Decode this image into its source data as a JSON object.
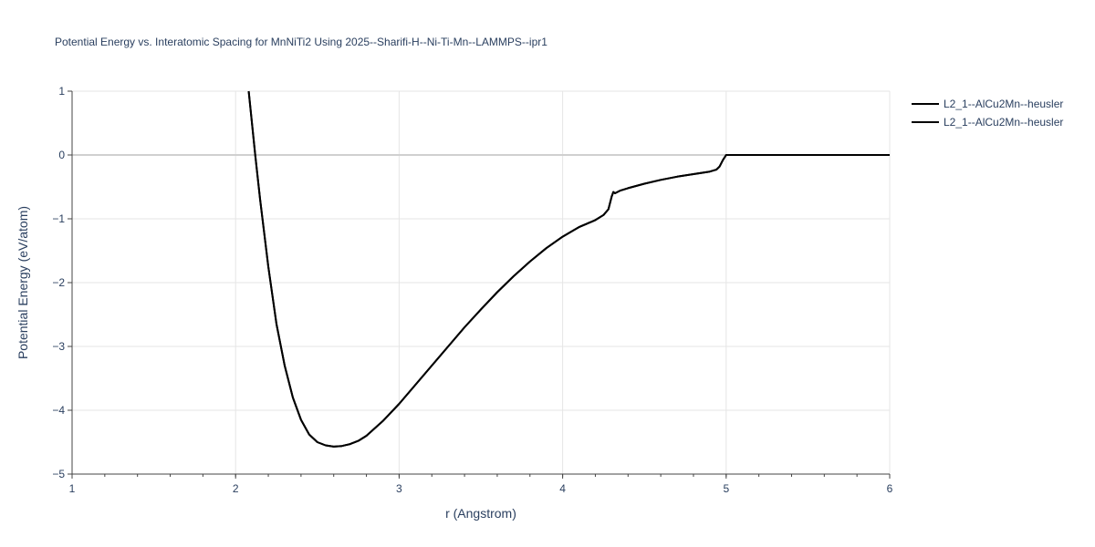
{
  "chart_data": {
    "type": "line",
    "title": "Potential Energy vs. Interatomic Spacing for MnNiTi2 Using 2025--Sharifi-H--Ni-Ti-Mn--LAMMPS--ipr1",
    "xlabel": "r (Angstrom)",
    "ylabel": "Potential Energy (eV/atom)",
    "xlim": [
      1,
      6
    ],
    "ylim": [
      -5,
      1
    ],
    "xticks": [
      "1",
      "2",
      "3",
      "4",
      "5",
      "6"
    ],
    "yticks": [
      "1",
      "0",
      "−1",
      "−2",
      "−3",
      "−4",
      "−5"
    ],
    "grid": true,
    "legend_position": "top-right",
    "series": [
      {
        "name": "L2_1--AlCu2Mn--heusler",
        "color": "#000000",
        "x": [
          2.08,
          2.1,
          2.12,
          2.15,
          2.2,
          2.25,
          2.3,
          2.35,
          2.4,
          2.45,
          2.5,
          2.55,
          2.6,
          2.65,
          2.7,
          2.75,
          2.8,
          2.9,
          3.0,
          3.1,
          3.2,
          3.3,
          3.4,
          3.5,
          3.6,
          3.7,
          3.8,
          3.9,
          4.0,
          4.1,
          4.2,
          4.25,
          4.28,
          4.3,
          4.31,
          4.32,
          4.35,
          4.4,
          4.5,
          4.6,
          4.7,
          4.8,
          4.9,
          4.94,
          4.96,
          4.98,
          5.0,
          5.1,
          5.5,
          6.0
        ],
        "y": [
          1.0,
          0.5,
          0.0,
          -0.7,
          -1.75,
          -2.65,
          -3.3,
          -3.8,
          -4.15,
          -4.38,
          -4.5,
          -4.55,
          -4.57,
          -4.56,
          -4.53,
          -4.48,
          -4.4,
          -4.17,
          -3.9,
          -3.6,
          -3.3,
          -3.0,
          -2.7,
          -2.42,
          -2.15,
          -1.9,
          -1.67,
          -1.46,
          -1.28,
          -1.13,
          -1.02,
          -0.94,
          -0.85,
          -0.65,
          -0.58,
          -0.6,
          -0.56,
          -0.52,
          -0.45,
          -0.39,
          -0.34,
          -0.3,
          -0.26,
          -0.23,
          -0.18,
          -0.08,
          0.0,
          0.0,
          0.0,
          0.0
        ]
      },
      {
        "name": "L2_1--AlCu2Mn--heusler",
        "color": "#000000",
        "x": [
          2.08,
          2.1,
          2.12,
          2.15,
          2.2,
          2.25,
          2.3,
          2.35,
          2.4,
          2.45,
          2.5,
          2.55,
          2.6,
          2.65,
          2.7,
          2.75,
          2.8,
          2.9,
          3.0,
          3.1,
          3.2,
          3.3,
          3.4,
          3.5,
          3.6,
          3.7,
          3.8,
          3.9,
          4.0,
          4.1,
          4.2,
          4.25,
          4.28,
          4.3,
          4.31,
          4.32,
          4.35,
          4.4,
          4.5,
          4.6,
          4.7,
          4.8,
          4.9,
          4.94,
          4.96,
          4.98,
          5.0,
          5.1,
          5.5,
          6.0
        ],
        "y": [
          1.0,
          0.5,
          0.0,
          -0.7,
          -1.75,
          -2.65,
          -3.3,
          -3.8,
          -4.15,
          -4.38,
          -4.5,
          -4.55,
          -4.57,
          -4.56,
          -4.53,
          -4.48,
          -4.4,
          -4.17,
          -3.9,
          -3.6,
          -3.3,
          -3.0,
          -2.7,
          -2.42,
          -2.15,
          -1.9,
          -1.67,
          -1.46,
          -1.28,
          -1.13,
          -1.02,
          -0.94,
          -0.85,
          -0.65,
          -0.58,
          -0.6,
          -0.56,
          -0.52,
          -0.45,
          -0.39,
          -0.34,
          -0.3,
          -0.26,
          -0.23,
          -0.18,
          -0.08,
          0.0,
          0.0,
          0.0,
          0.0
        ]
      }
    ]
  }
}
